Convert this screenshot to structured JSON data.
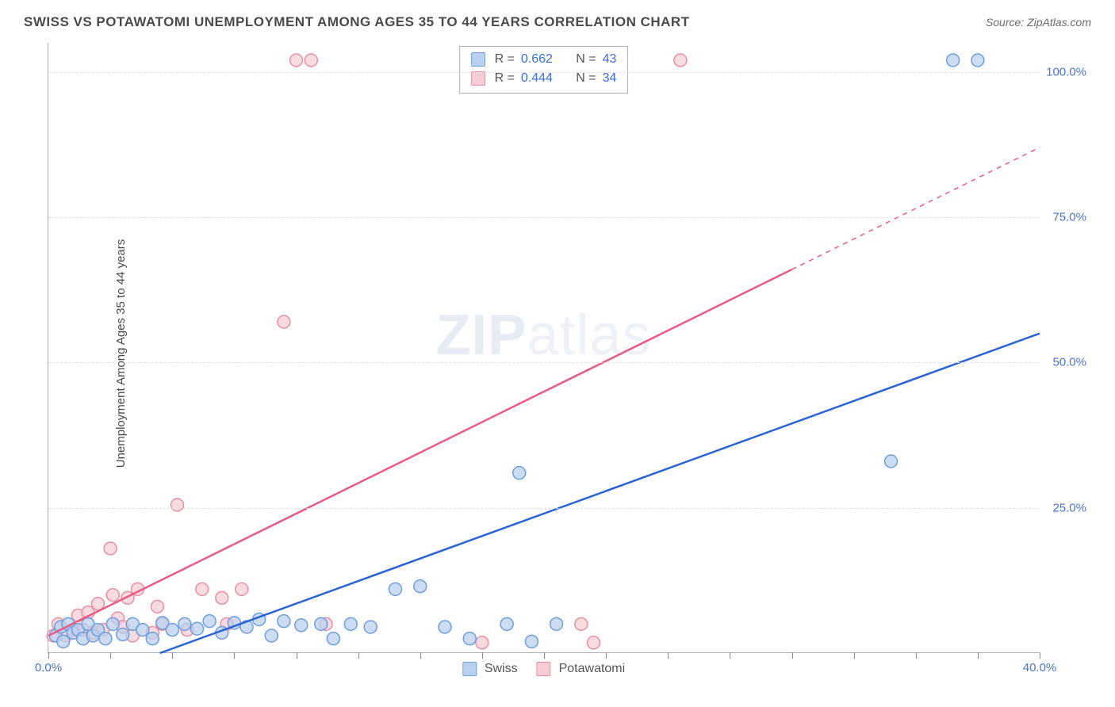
{
  "title": "SWISS VS POTAWATOMI UNEMPLOYMENT AMONG AGES 35 TO 44 YEARS CORRELATION CHART",
  "source_label": "Source: ",
  "source_name": "ZipAtlas.com",
  "y_axis_label": "Unemployment Among Ages 35 to 44 years",
  "watermark_a": "ZIP",
  "watermark_b": "atlas",
  "chart": {
    "type": "scatter",
    "xlim": [
      0,
      40
    ],
    "ylim": [
      0,
      105
    ],
    "x_ticks": [
      0,
      2.5,
      5,
      7.5,
      10,
      12.5,
      15,
      17.5,
      20,
      22.5,
      25,
      27.5,
      30,
      32.5,
      35,
      37.5,
      40
    ],
    "x_tick_labels": {
      "0": "0.0%",
      "40": "40.0%"
    },
    "y_gridlines": [
      25,
      50,
      75,
      100
    ],
    "y_tick_labels": {
      "25": "25.0%",
      "50": "50.0%",
      "75": "75.0%",
      "100": "100.0%"
    },
    "background_color": "#ffffff",
    "grid_color": "#e0e0e0",
    "axis_color": "#b0b0b0",
    "label_color": "#4a74c9",
    "marker_radius": 8,
    "marker_stroke_width": 1.5,
    "series": {
      "swiss": {
        "label": "Swiss",
        "fill": "#b9d0ef",
        "stroke": "#6f9edb",
        "line_color": "#2c62d6",
        "line_width": 2.5,
        "regression": {
          "x1": 4.5,
          "y1": 0,
          "x2": 40,
          "y2": 55
        },
        "dashed_extension": null,
        "stats": {
          "R_label": "R  =",
          "R": "0.662",
          "N_label": "N  =",
          "N": "43"
        },
        "points": [
          [
            0.3,
            3
          ],
          [
            0.5,
            4.5
          ],
          [
            0.6,
            2
          ],
          [
            0.8,
            5
          ],
          [
            1.0,
            3.5
          ],
          [
            1.2,
            4
          ],
          [
            1.4,
            2.5
          ],
          [
            1.6,
            5
          ],
          [
            1.8,
            3
          ],
          [
            2.0,
            4
          ],
          [
            2.3,
            2.5
          ],
          [
            2.6,
            5
          ],
          [
            3.0,
            3.2
          ],
          [
            3.4,
            5
          ],
          [
            3.8,
            4
          ],
          [
            4.2,
            2.5
          ],
          [
            4.6,
            5.2
          ],
          [
            5.0,
            4
          ],
          [
            5.5,
            5
          ],
          [
            6.0,
            4.2
          ],
          [
            6.5,
            5.5
          ],
          [
            7.0,
            3.5
          ],
          [
            7.5,
            5.2
          ],
          [
            8.0,
            4.5
          ],
          [
            8.5,
            5.8
          ],
          [
            9.0,
            3
          ],
          [
            9.5,
            5.5
          ],
          [
            10.2,
            4.8
          ],
          [
            11.0,
            5
          ],
          [
            11.5,
            2.5
          ],
          [
            12.2,
            5
          ],
          [
            13.0,
            4.5
          ],
          [
            14.0,
            11
          ],
          [
            15.0,
            11.5
          ],
          [
            16.0,
            4.5
          ],
          [
            17.0,
            2.5
          ],
          [
            18.5,
            5
          ],
          [
            19.0,
            31
          ],
          [
            19.5,
            2
          ],
          [
            20.5,
            5
          ],
          [
            34,
            33
          ],
          [
            36.5,
            102
          ],
          [
            37.5,
            102
          ]
        ]
      },
      "potawatomi": {
        "label": "Potawatomi",
        "fill": "#f6cdd7",
        "stroke": "#e68fa5",
        "line_color": "#e85a87",
        "line_width": 2.5,
        "regression": {
          "x1": 0,
          "y1": 3,
          "x2": 30,
          "y2": 66
        },
        "dashed_extension": {
          "x1": 30,
          "y1": 66,
          "x2": 40,
          "y2": 87
        },
        "stats": {
          "R_label": "R  =",
          "R": "0.444",
          "N_label": "N  =",
          "N": "34"
        },
        "points": [
          [
            0.2,
            3
          ],
          [
            0.4,
            5
          ],
          [
            0.7,
            3
          ],
          [
            1.0,
            4
          ],
          [
            1.2,
            6.5
          ],
          [
            1.4,
            4
          ],
          [
            1.6,
            7
          ],
          [
            1.8,
            3.5
          ],
          [
            2.0,
            8.5
          ],
          [
            2.2,
            4
          ],
          [
            2.5,
            18
          ],
          [
            2.6,
            10
          ],
          [
            2.8,
            6
          ],
          [
            3.0,
            4.5
          ],
          [
            3.2,
            9.5
          ],
          [
            3.4,
            3
          ],
          [
            3.6,
            11
          ],
          [
            4.2,
            3.5
          ],
          [
            4.4,
            8
          ],
          [
            4.6,
            5
          ],
          [
            5.2,
            25.5
          ],
          [
            5.6,
            4
          ],
          [
            6.2,
            11
          ],
          [
            7.0,
            9.5
          ],
          [
            7.2,
            5
          ],
          [
            7.8,
            11
          ],
          [
            9.5,
            57
          ],
          [
            10.0,
            102
          ],
          [
            10.6,
            102
          ],
          [
            11.2,
            5
          ],
          [
            17.5,
            1.8
          ],
          [
            21.5,
            5
          ],
          [
            22.0,
            1.8
          ],
          [
            25.5,
            102
          ]
        ]
      }
    }
  },
  "legend_bottom": [
    {
      "label": "Swiss",
      "fill": "#b9d0ef",
      "stroke": "#6f9edb"
    },
    {
      "label": "Potawatomi",
      "fill": "#f6cdd7",
      "stroke": "#e68fa5"
    }
  ]
}
